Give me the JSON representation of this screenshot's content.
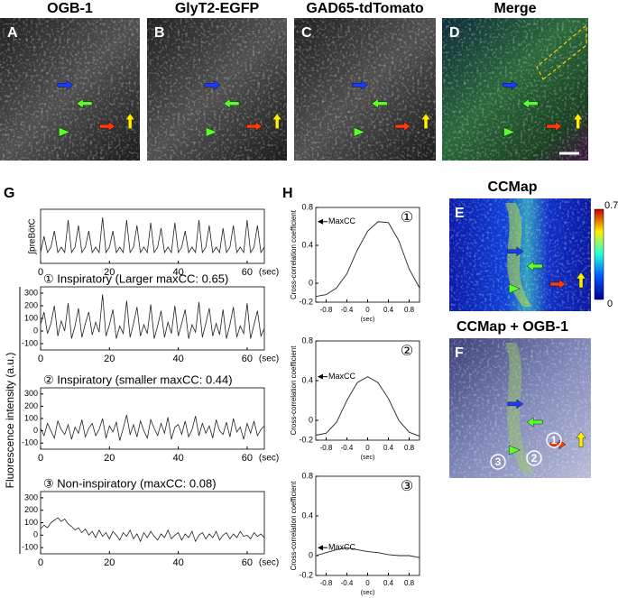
{
  "figure": {
    "top_panels": [
      {
        "label": "A",
        "title": "OGB-1"
      },
      {
        "label": "B",
        "title": "GlyT2-EGFP"
      },
      {
        "label": "C",
        "title": "GAD65-tdTomato"
      },
      {
        "label": "D",
        "title": "Merge"
      }
    ],
    "G": {
      "label": "G",
      "ylabel": "Fluorescence intensity (a.u.)",
      "xunit": "(sec)",
      "x": [
        0,
        1,
        2,
        3,
        4,
        5,
        6,
        7,
        8,
        9,
        10,
        11,
        12,
        13,
        14,
        15,
        16,
        17,
        18,
        19,
        20,
        21,
        22,
        23,
        24,
        25,
        26,
        27,
        28,
        29,
        30,
        31,
        32,
        33,
        34,
        35,
        36,
        37,
        38,
        39,
        40,
        41,
        42,
        43,
        44,
        45,
        46,
        47,
        48,
        49,
        50,
        51,
        52,
        53,
        54,
        55,
        56,
        57,
        58,
        59,
        60,
        61,
        62,
        63,
        64,
        65
      ],
      "xlim": [
        0,
        65
      ],
      "xticks": [
        0,
        20,
        40,
        60
      ],
      "plots": [
        {
          "ylabel": "∫preBötC",
          "ylim": [
            0,
            1
          ],
          "values": [
            0.2,
            0.5,
            0.2,
            0.3,
            0.6,
            0.2,
            0.3,
            0.2,
            0.8,
            0.2,
            0.3,
            0.7,
            0.2,
            0.3,
            0.6,
            0.2,
            0.3,
            0.2,
            0.85,
            0.2,
            0.3,
            0.6,
            0.2,
            0.3,
            0.2,
            0.8,
            0.2,
            0.3,
            0.7,
            0.2,
            0.3,
            0.2,
            0.75,
            0.2,
            0.3,
            0.65,
            0.2,
            0.3,
            0.2,
            0.75,
            0.2,
            0.3,
            0.6,
            0.2,
            0.3,
            0.2,
            0.8,
            0.2,
            0.3,
            0.7,
            0.2,
            0.3,
            0.2,
            0.65,
            0.2,
            0.3,
            0.7,
            0.2,
            0.3,
            0.2,
            0.8,
            0.2,
            0.3,
            0.7,
            0.2,
            0.3
          ]
        },
        {
          "title": "① Inspiratory (Larger maxCC: 0.65)",
          "ylim": [
            -150,
            350
          ],
          "yticks": [
            300,
            200,
            100,
            0,
            -100
          ],
          "values": [
            50,
            150,
            -20,
            60,
            200,
            -40,
            80,
            0,
            220,
            -60,
            40,
            180,
            -50,
            60,
            150,
            -30,
            70,
            -10,
            290,
            -40,
            50,
            170,
            -60,
            40,
            -20,
            240,
            -50,
            60,
            190,
            -40,
            50,
            -20,
            210,
            -60,
            40,
            160,
            -50,
            70,
            -20,
            200,
            -40,
            60,
            170,
            -60,
            50,
            -10,
            230,
            -50,
            60,
            180,
            -40,
            60,
            -30,
            170,
            -60,
            50,
            190,
            -50,
            40,
            -20,
            220,
            -60,
            50,
            160,
            -40,
            20
          ]
        },
        {
          "title": "② Inspiratory (smaller maxCC: 0.44)",
          "ylim": [
            -150,
            350
          ],
          "yticks": [
            300,
            200,
            100,
            0,
            -100
          ],
          "values": [
            20,
            -40,
            60,
            0,
            -60,
            80,
            10,
            -30,
            50,
            -70,
            30,
            -20,
            90,
            -50,
            20,
            60,
            -40,
            10,
            100,
            -60,
            40,
            -10,
            70,
            -80,
            20,
            130,
            -30,
            50,
            -50,
            80,
            0,
            -60,
            90,
            20,
            -40,
            60,
            -20,
            110,
            -70,
            30,
            50,
            -30,
            80,
            -50,
            10,
            120,
            -40,
            60,
            -20,
            40,
            -60,
            90,
            0,
            -30,
            70,
            -50,
            100,
            -10,
            30,
            -70,
            60,
            -20,
            80,
            -40,
            10,
            40
          ]
        },
        {
          "title": "③ Non-inspiratory (maxCC: 0.08)",
          "ylim": [
            -150,
            350
          ],
          "yticks": [
            300,
            200,
            100,
            0,
            -100
          ],
          "values": [
            50,
            80,
            60,
            100,
            120,
            140,
            110,
            130,
            90,
            70,
            40,
            60,
            20,
            50,
            0,
            30,
            -20,
            40,
            -10,
            20,
            -30,
            30,
            0,
            -40,
            20,
            -10,
            40,
            -30,
            10,
            -50,
            20,
            -20,
            30,
            -10,
            -40,
            10,
            -20,
            40,
            -30,
            0,
            20,
            -40,
            10,
            -20,
            30,
            -50,
            0,
            20,
            -30,
            10,
            -20,
            30,
            -40,
            0,
            20,
            -30,
            10,
            -20,
            30,
            -10,
            0,
            -30,
            20,
            -10,
            10,
            -20
          ]
        }
      ]
    },
    "H": {
      "label": "H",
      "ylabel": "Cross-correlation coefficient",
      "xunit": "(sec)",
      "annotation": "MaxCC",
      "x": [
        -1,
        -0.8,
        -0.6,
        -0.4,
        -0.2,
        0,
        0.2,
        0.4,
        0.6,
        0.8,
        1
      ],
      "xlim": [
        -1,
        1
      ],
      "ylim": [
        -0.2,
        0.8
      ],
      "xticks": [
        -0.8,
        -0.4,
        0,
        0.4,
        0.8
      ],
      "yticks": [
        0.8,
        0.4,
        0,
        -0.2
      ],
      "plots": [
        {
          "marker": "①",
          "values": [
            -0.14,
            -0.12,
            -0.05,
            0.1,
            0.35,
            0.55,
            0.65,
            0.64,
            0.45,
            0.15,
            -0.05
          ]
        },
        {
          "marker": "②",
          "values": [
            -0.15,
            -0.13,
            -0.02,
            0.2,
            0.38,
            0.44,
            0.38,
            0.22,
            0.0,
            -0.12,
            -0.16
          ]
        },
        {
          "marker": "③",
          "values": [
            0.0,
            0.03,
            0.06,
            0.08,
            0.06,
            0.04,
            0.03,
            0.01,
            0.0,
            0.0,
            -0.02
          ]
        }
      ]
    },
    "E": {
      "label": "E",
      "title": "CCMap",
      "colorbar": [
        0.7,
        0
      ]
    },
    "F": {
      "label": "F",
      "title": "CCMap + OGB-1",
      "cells": [
        "1",
        "2",
        "3"
      ]
    }
  }
}
